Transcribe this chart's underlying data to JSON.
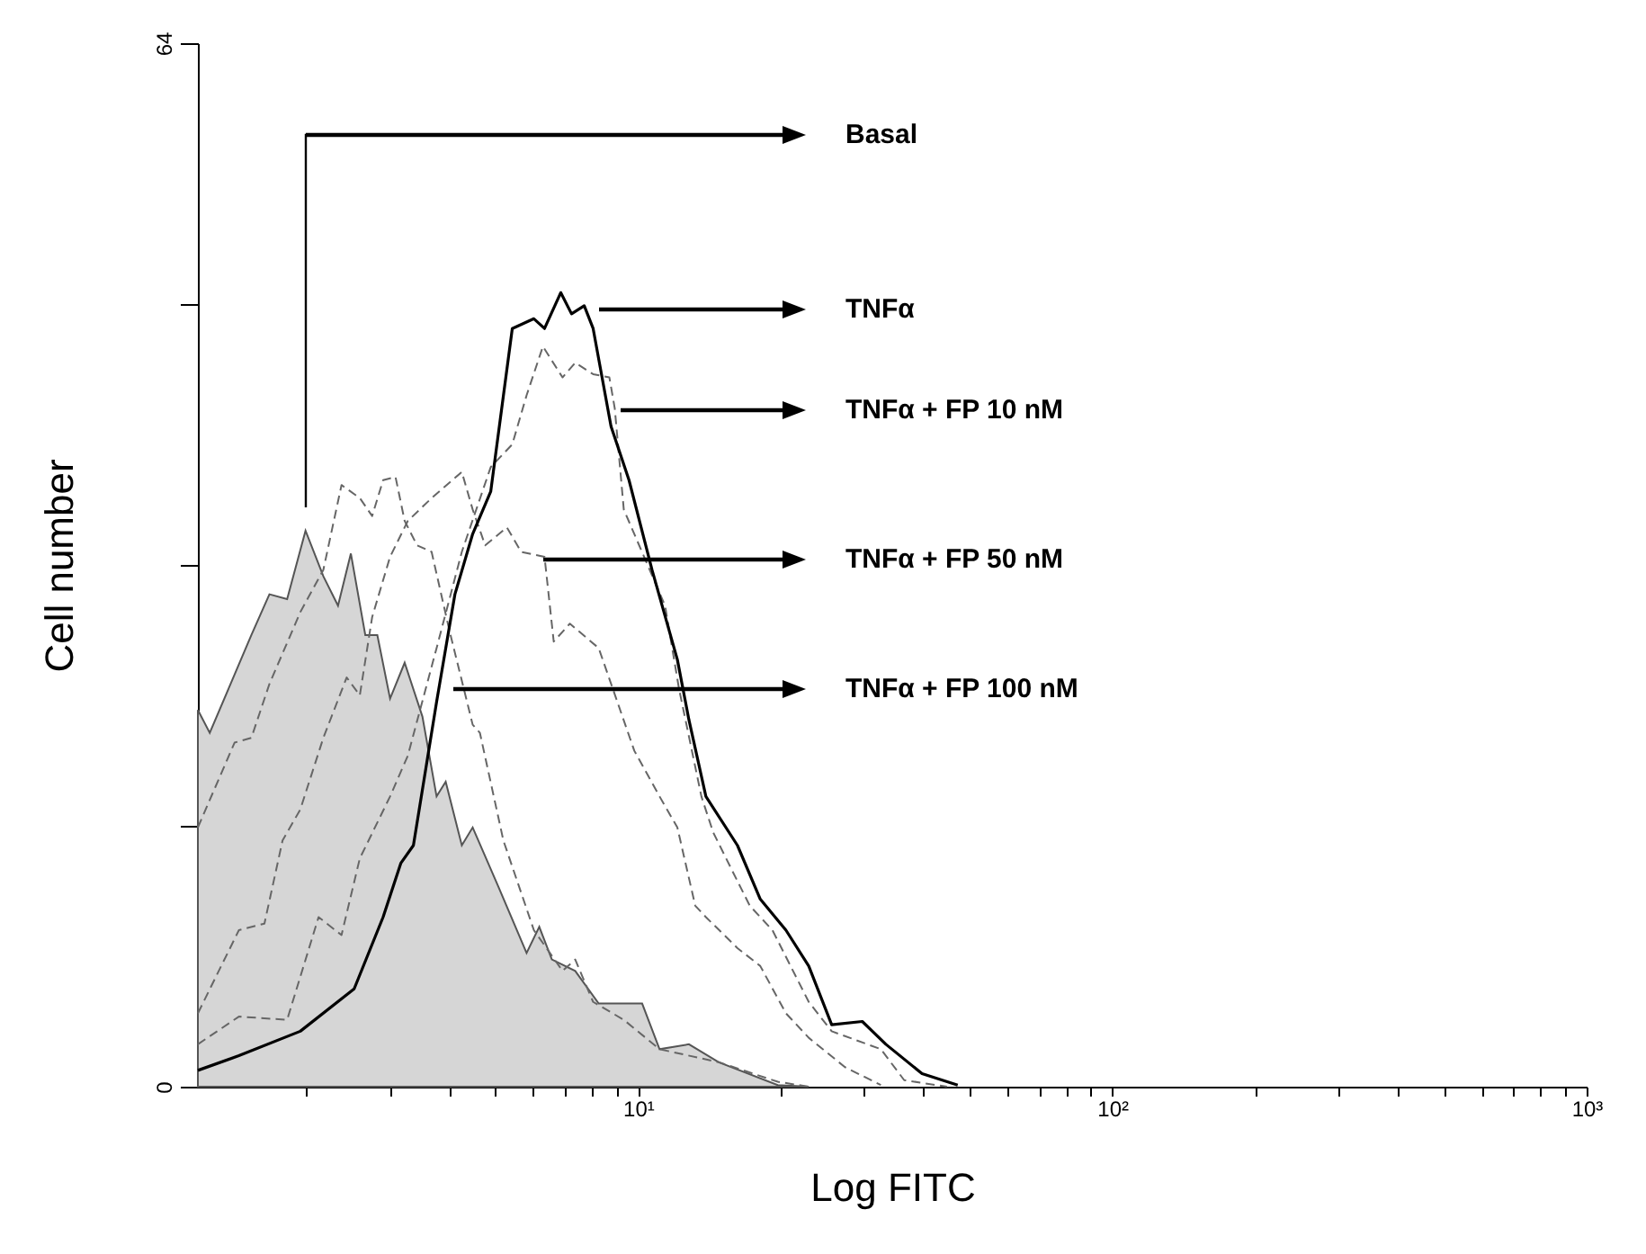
{
  "chart_data": {
    "type": "line",
    "xlabel": "Log FITC",
    "ylabel": "Cell number",
    "log": "x",
    "grid": false,
    "xlim": [
      1.18,
      1000
    ],
    "xticks": [
      {
        "value": 2,
        "label": null
      },
      {
        "value": 3,
        "label": null
      },
      {
        "value": 4,
        "label": null
      },
      {
        "value": 5,
        "label": null
      },
      {
        "value": 6,
        "label": null
      },
      {
        "value": 7,
        "label": null
      },
      {
        "value": 8,
        "label": null
      },
      {
        "value": 9,
        "label": null
      },
      {
        "value": 10,
        "label": "10¹"
      },
      {
        "value": 20,
        "label": null
      },
      {
        "value": 30,
        "label": null
      },
      {
        "value": 40,
        "label": null
      },
      {
        "value": 50,
        "label": null
      },
      {
        "value": 60,
        "label": null
      },
      {
        "value": 70,
        "label": null
      },
      {
        "value": 80,
        "label": null
      },
      {
        "value": 90,
        "label": null
      },
      {
        "value": 100,
        "label": "10²"
      },
      {
        "value": 200,
        "label": null
      },
      {
        "value": 300,
        "label": null
      },
      {
        "value": 400,
        "label": null
      },
      {
        "value": 500,
        "label": null
      },
      {
        "value": 600,
        "label": null
      },
      {
        "value": 700,
        "label": null
      },
      {
        "value": 800,
        "label": null
      },
      {
        "value": 900,
        "label": null
      },
      {
        "value": 1000,
        "label": "10³"
      }
    ],
    "ylim": [
      0,
      64
    ],
    "yticks": [
      0,
      {
        "value": 16,
        "label": null
      },
      {
        "value": 32,
        "label": null
      },
      {
        "value": 48,
        "label": null
      },
      64
    ],
    "series": [
      {
        "type": "area",
        "color": "#d6d6d6",
        "x": [
          1.18,
          1.25,
          1.53,
          1.67,
          1.82,
          1.99,
          2.17,
          2.33,
          2.48,
          2.66,
          2.82,
          3.0,
          3.22,
          3.51,
          3.76,
          3.93,
          4.25,
          4.48,
          5.07,
          5.82,
          6.19,
          6.58,
          7.37,
          8.26,
          10.2,
          11.1,
          12.8,
          14.8,
          19.7,
          22.9
        ],
        "values": [
          23.1,
          21.7,
          27.7,
          30.2,
          29.9,
          34.1,
          31.3,
          29.5,
          32.7,
          27.7,
          27.7,
          23.8,
          26.0,
          22.7,
          17.8,
          18.7,
          14.8,
          15.9,
          12.3,
          8.2,
          9.8,
          7.8,
          7.1,
          5.1,
          5.1,
          2.3,
          2.6,
          1.5,
          0.1,
          0
        ]
      },
      {
        "type": "line",
        "line_style": "dashed",
        "color": "#666666",
        "x": [
          1.18,
          1.41,
          1.53,
          1.67,
          1.94,
          2.17,
          2.37,
          2.59,
          2.75,
          2.9,
          3.08,
          3.22,
          3.42,
          3.67,
          4.0,
          4.48,
          4.64,
          5.2,
          6.03,
          6.93,
          7.37,
          8.04,
          9.33,
          11.1,
          14.8,
          19.7,
          22.9
        ],
        "values": [
          15.9,
          21.1,
          21.4,
          24.7,
          29.1,
          31.7,
          36.9,
          36.1,
          35.0,
          37.2,
          37.4,
          34.7,
          33.2,
          32.8,
          28.0,
          22.2,
          21.7,
          15.1,
          9.6,
          7.1,
          7.8,
          5.2,
          4.1,
          2.3,
          1.5,
          0.3,
          0
        ]
      },
      {
        "type": "line",
        "line_style": "dashed",
        "color": "#666666",
        "x": [
          1.18,
          1.44,
          1.63,
          1.78,
          1.94,
          2.17,
          2.43,
          2.59,
          2.75,
          3.0,
          3.27,
          3.67,
          4.25,
          4.48,
          4.76,
          5.29,
          5.67,
          6.35,
          6.64,
          7.18,
          8.26,
          9.82,
          11.1,
          12.1,
          13.2,
          13.9,
          16.2,
          18.1,
          20.5,
          22.9,
          27.3,
          32.5
        ],
        "values": [
          4.5,
          9.6,
          10.0,
          15.1,
          17.0,
          21.4,
          25.1,
          24.0,
          28.8,
          32.5,
          34.7,
          36.1,
          37.7,
          35.4,
          33.2,
          34.3,
          32.8,
          32.5,
          27.3,
          28.4,
          26.9,
          20.6,
          17.8,
          15.9,
          11.1,
          10.4,
          8.5,
          7.4,
          4.5,
          3.0,
          1.2,
          0.1
        ]
      },
      {
        "type": "line",
        "line_style": "dashed",
        "color": "#666666",
        "x": [
          1.18,
          1.44,
          1.82,
          2.12,
          2.37,
          2.59,
          3.0,
          3.27,
          3.76,
          4.25,
          4.89,
          5.43,
          5.82,
          6.3,
          6.93,
          7.37,
          8.04,
          8.7,
          8.93,
          9.33,
          11.4,
          12.2,
          13.6,
          14.4,
          15.7,
          17.2,
          19.2,
          22.9,
          25.6,
          32.5,
          36.4,
          44.8
        ],
        "values": [
          2.6,
          4.3,
          4.1,
          10.4,
          9.3,
          14.0,
          17.8,
          20.3,
          26.9,
          32.8,
          38.0,
          39.4,
          42.4,
          45.4,
          43.5,
          44.4,
          43.7,
          43.5,
          41.6,
          35.4,
          29.5,
          24.4,
          17.8,
          15.6,
          13.4,
          11.1,
          9.6,
          5.2,
          3.4,
          2.3,
          0.4,
          0
        ]
      },
      {
        "type": "line",
        "line_style": "solid",
        "color": "#000000",
        "x": [
          1.18,
          1.44,
          1.94,
          2.52,
          2.9,
          3.16,
          3.36,
          3.76,
          4.11,
          4.48,
          4.89,
          5.43,
          6.03,
          6.35,
          6.87,
          7.24,
          7.7,
          8.04,
          8.77,
          9.57,
          10.7,
          12.1,
          12.8,
          13.9,
          16.2,
          18.1,
          20.5,
          22.9,
          25.6,
          29.7,
          33.3,
          39.7,
          47.2
        ],
        "values": [
          1.0,
          1.9,
          3.4,
          6.0,
          10.4,
          13.7,
          14.8,
          23.6,
          30.2,
          33.9,
          36.5,
          46.5,
          47.1,
          46.5,
          48.7,
          47.4,
          47.9,
          46.5,
          40.5,
          37.2,
          31.7,
          26.2,
          22.5,
          17.8,
          14.8,
          11.5,
          9.6,
          7.4,
          3.8,
          4.0,
          2.6,
          0.8,
          0.1
        ]
      }
    ],
    "annotations": [
      "Basal",
      "TNFα",
      "TNFα + FP 10 nM",
      "TNFα + FP 50 nM",
      "TNFα + FP 100 nM"
    ]
  }
}
